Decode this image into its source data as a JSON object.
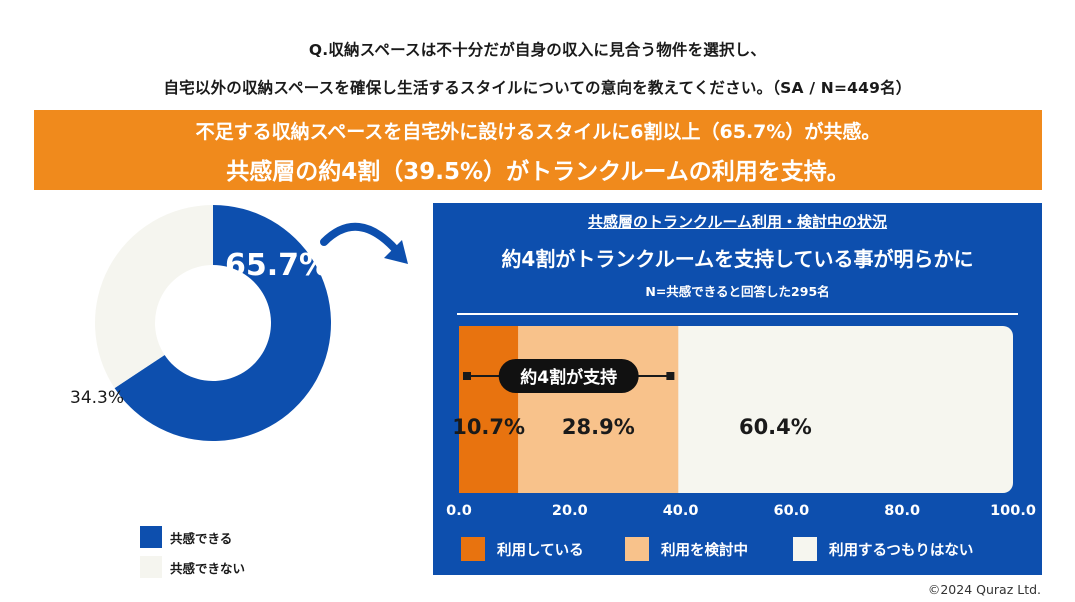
{
  "question": {
    "line1": "Q.収納スペースは不十分だが自身の収入に見合う物件を選択し、",
    "line2": "自宅以外の収納スペースを確保し生活するスタイルについての意向を教えてください。（SA / N=449名）"
  },
  "banner": {
    "line1": "不足する収納スペースを自宅外に設けるスタイルに6割以上（65.7%）が共感。",
    "line2": "共感層の約4割（39.5%）がトランクルームの利用を支持。",
    "color": "#f08a1c"
  },
  "panel": {
    "subtitle": "共感層のトランクルーム利用・検討中の状況",
    "headline": "約4割がトランクルームを支持している事が明らかに",
    "n_note": "N=共感できると回答した295名",
    "color": "#0d4fae"
  },
  "copyright": "©2024 Quraz Ltd.",
  "chart_data": [
    {
      "type": "pie",
      "donut": true,
      "labels": [
        "共感できる",
        "共感できない"
      ],
      "values": [
        65.7,
        34.3
      ],
      "value_labels": [
        "65.7%",
        "34.3%"
      ],
      "colors": [
        "#0d4fae",
        "#f5f5ef"
      ],
      "legend_position": "bottom"
    },
    {
      "type": "bar",
      "orientation": "horizontal",
      "stacked": true,
      "series": [
        {
          "name": "利用している",
          "values": [
            10.7
          ],
          "label": "10.7%",
          "color": "#e8730f"
        },
        {
          "name": "利用を検討中",
          "values": [
            28.9
          ],
          "label": "28.9%",
          "color": "#f8c28b"
        },
        {
          "name": "利用するつもりはない",
          "values": [
            60.4
          ],
          "label": "60.4%",
          "color": "#f6f6ef"
        }
      ],
      "xlim": [
        0,
        100
      ],
      "xticks": [
        "0.0",
        "20.0",
        "40.0",
        "60.0",
        "80.0",
        "100.0"
      ],
      "annotation": "約4割が支持",
      "legend_position": "bottom"
    }
  ]
}
